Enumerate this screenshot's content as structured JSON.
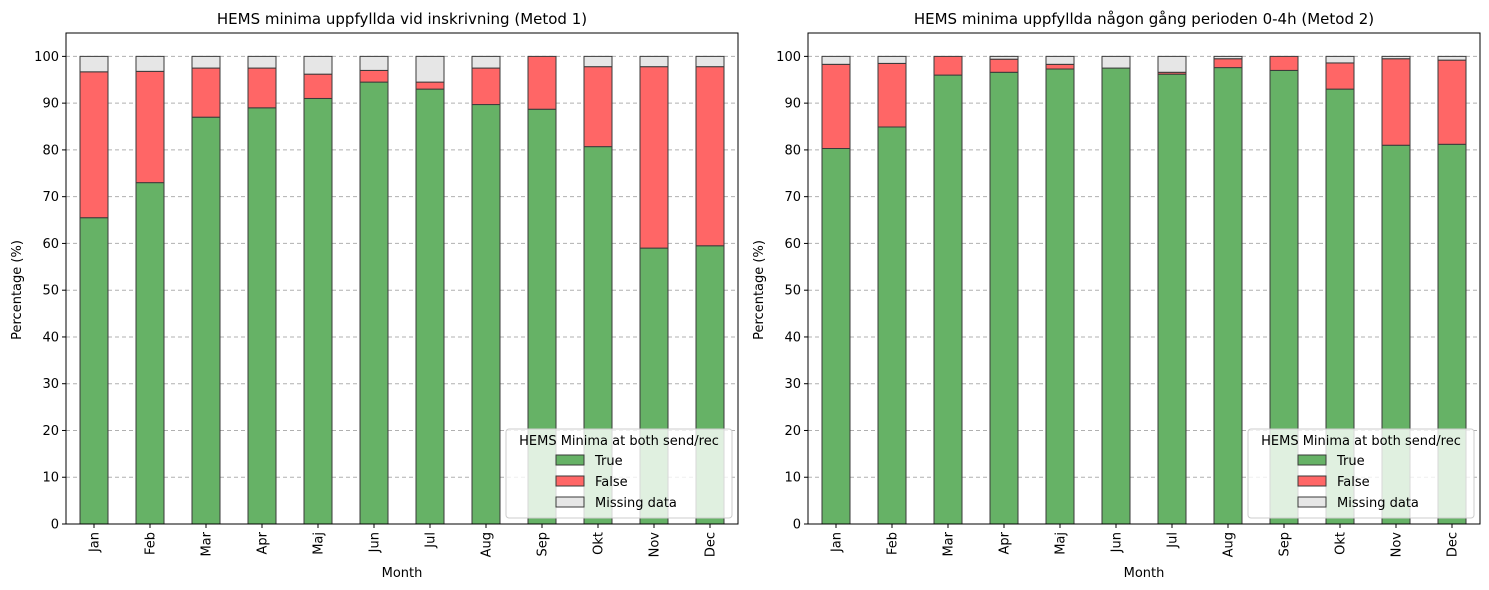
{
  "colors": {
    "true": "#66b266",
    "false": "#ff6666",
    "missing": "#e6e6e6",
    "edge": "#3a3a3a",
    "grid": "#b0b0b0"
  },
  "chart_data": [
    {
      "type": "bar",
      "stacked": true,
      "title": "HEMS minima uppfyllda vid inskrivning (Metod 1)",
      "xlabel": "Month",
      "ylabel": "Percentage (%)",
      "ylim": [
        0,
        105
      ],
      "yticks": [
        0,
        10,
        20,
        30,
        40,
        50,
        60,
        70,
        80,
        90,
        100
      ],
      "grid": "y-dashed",
      "categories": [
        "Jan",
        "Feb",
        "Mar",
        "Apr",
        "Maj",
        "Jun",
        "Jul",
        "Aug",
        "Sep",
        "Okt",
        "Nov",
        "Dec"
      ],
      "legend": {
        "title": "HEMS Minima at both send/rec",
        "position": "lower-right"
      },
      "series": [
        {
          "name": "True",
          "color_key": "true",
          "values": [
            65.5,
            73.0,
            87.0,
            89.0,
            91.0,
            94.5,
            93.0,
            89.7,
            88.7,
            80.7,
            59.0,
            59.5
          ]
        },
        {
          "name": "False",
          "color_key": "false",
          "values": [
            31.2,
            23.8,
            10.5,
            8.5,
            5.2,
            2.5,
            1.5,
            7.8,
            11.3,
            17.1,
            38.8,
            38.3
          ]
        },
        {
          "name": "Missing data",
          "color_key": "missing",
          "values": [
            3.3,
            3.2,
            2.5,
            2.5,
            3.8,
            3.0,
            5.5,
            2.5,
            0.0,
            2.2,
            2.2,
            2.2
          ]
        }
      ]
    },
    {
      "type": "bar",
      "stacked": true,
      "title": "HEMS minima uppfyllda någon gång perioden 0-4h (Metod 2)",
      "xlabel": "Month",
      "ylabel": "Percentage (%)",
      "ylim": [
        0,
        105
      ],
      "yticks": [
        0,
        10,
        20,
        30,
        40,
        50,
        60,
        70,
        80,
        90,
        100
      ],
      "grid": "y-dashed",
      "categories": [
        "Jan",
        "Feb",
        "Mar",
        "Apr",
        "Maj",
        "Jun",
        "Jul",
        "Aug",
        "Sep",
        "Okt",
        "Nov",
        "Dec"
      ],
      "legend": {
        "title": "HEMS Minima at both send/rec",
        "position": "lower-right"
      },
      "series": [
        {
          "name": "True",
          "color_key": "true",
          "values": [
            80.3,
            84.9,
            96.0,
            96.6,
            97.3,
            97.5,
            96.2,
            97.6,
            97.0,
            93.0,
            81.0,
            81.2
          ]
        },
        {
          "name": "False",
          "color_key": "false",
          "values": [
            18.0,
            13.6,
            4.0,
            2.8,
            1.0,
            0.0,
            0.4,
            1.9,
            3.0,
            5.6,
            18.5,
            18.0
          ]
        },
        {
          "name": "Missing data",
          "color_key": "missing",
          "values": [
            1.7,
            1.5,
            0.0,
            0.6,
            1.7,
            2.5,
            3.4,
            0.5,
            0.0,
            1.4,
            0.5,
            0.8
          ]
        }
      ]
    }
  ]
}
